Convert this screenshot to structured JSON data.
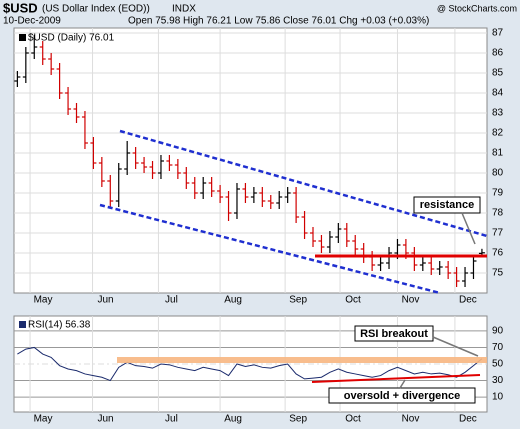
{
  "header": {
    "symbol": "$USD",
    "name": "(US Dollar Index (EOD))",
    "exchange": "INDX",
    "date": "10-Dec-2009",
    "quote": "Open 75.98  High 76.21  Low 75.86  Close 76.01  Chg +0.03 (+0.03%)",
    "credit": "@ StockCharts.com"
  },
  "chart_data": [
    {
      "type": "ohlc",
      "legend": "$USD (Daily) 76.01",
      "grid": true,
      "up_color": "#000000",
      "down_color": "#d00000",
      "open": [
        84.6,
        84.8,
        86.0,
        86.3,
        85.7,
        85.2,
        84.0,
        83.2,
        82.8,
        81.5,
        80.5,
        79.6,
        78.6,
        80.2,
        81.0,
        80.5,
        80.3,
        80.0,
        80.6,
        80.4,
        80.0,
        79.5,
        79.0,
        79.5,
        79.1,
        78.8,
        78.0,
        79.2,
        78.8,
        79.0,
        78.6,
        78.5,
        78.8,
        79.0,
        77.8,
        77.0,
        76.6,
        76.3,
        76.8,
        77.2,
        76.6,
        76.2,
        75.8,
        75.4,
        75.5,
        76.0,
        76.4,
        76.0,
        75.4,
        75.5,
        75.2,
        75.3,
        75.0,
        74.6,
        75.0,
        75.98
      ],
      "high": [
        85.1,
        86.3,
        86.9,
        86.6,
        86.0,
        85.5,
        84.3,
        83.5,
        83.1,
        81.8,
        80.8,
        79.9,
        80.5,
        81.6,
        81.3,
        80.8,
        80.6,
        80.9,
        80.9,
        80.7,
        80.3,
        79.8,
        79.8,
        79.8,
        79.4,
        79.1,
        79.5,
        79.5,
        79.3,
        79.3,
        78.9,
        79.1,
        79.3,
        79.3,
        78.1,
        77.3,
        76.9,
        77.1,
        77.5,
        77.5,
        76.9,
        76.5,
        76.1,
        75.8,
        76.3,
        76.7,
        76.7,
        76.3,
        75.8,
        75.8,
        75.6,
        75.6,
        75.3,
        75.3,
        75.9,
        76.21
      ],
      "low": [
        84.3,
        84.5,
        85.7,
        85.4,
        84.9,
        83.7,
        82.9,
        82.5,
        81.2,
        80.2,
        79.3,
        78.3,
        78.3,
        79.9,
        80.2,
        80.0,
        79.7,
        79.7,
        80.1,
        79.7,
        79.2,
        78.7,
        78.7,
        78.8,
        78.5,
        77.6,
        77.7,
        78.5,
        78.5,
        78.3,
        78.2,
        78.2,
        78.5,
        77.5,
        76.7,
        76.3,
        76.0,
        76.0,
        76.5,
        76.3,
        75.9,
        75.5,
        75.1,
        75.1,
        75.2,
        75.7,
        75.7,
        75.1,
        75.1,
        74.9,
        74.9,
        74.7,
        74.3,
        74.3,
        74.7,
        75.86
      ],
      "close": [
        84.8,
        86.0,
        86.3,
        85.7,
        85.2,
        84.0,
        83.2,
        82.8,
        81.5,
        80.5,
        79.6,
        78.6,
        80.2,
        81.0,
        80.5,
        80.3,
        80.0,
        80.6,
        80.4,
        80.0,
        79.5,
        79.0,
        79.5,
        79.1,
        78.8,
        78.0,
        79.2,
        78.8,
        79.0,
        78.6,
        78.5,
        78.8,
        79.0,
        77.8,
        77.0,
        76.6,
        76.3,
        76.8,
        77.2,
        76.6,
        76.2,
        75.8,
        75.4,
        75.5,
        76.0,
        76.4,
        76.0,
        75.4,
        75.5,
        75.2,
        75.3,
        75.0,
        74.6,
        75.0,
        75.6,
        76.01
      ],
      "ylim": [
        74,
        87.25
      ],
      "yticks": [
        75,
        76,
        77,
        78,
        79,
        80,
        81,
        82,
        83,
        84,
        85,
        86,
        87
      ],
      "xlim": [
        -0.4,
        55.6
      ],
      "xticks": [
        {
          "value": 1.5,
          "label": "May"
        },
        {
          "value": 8.9,
          "label": "Jun"
        },
        {
          "value": 16.7,
          "label": "Jul"
        },
        {
          "value": 24,
          "label": "Aug"
        },
        {
          "value": 31.7,
          "label": "Sep"
        },
        {
          "value": 38.2,
          "label": "Oct"
        },
        {
          "value": 45,
          "label": "Nov"
        },
        {
          "value": 51.8,
          "label": "Dec"
        }
      ],
      "annotations": [
        "resistance"
      ]
    },
    {
      "type": "line",
      "legend": "RSI(14) 56.38",
      "color": "#1a2a6c",
      "values": [
        62,
        68,
        70,
        62,
        58,
        48,
        44,
        42,
        38,
        36,
        34,
        30,
        46,
        52,
        48,
        47,
        45,
        50,
        49,
        46,
        44,
        42,
        46,
        44,
        42,
        36,
        50,
        47,
        49,
        46,
        45,
        48,
        50,
        38,
        32,
        33,
        34,
        40,
        44,
        40,
        38,
        36,
        34,
        36,
        42,
        46,
        42,
        38,
        40,
        38,
        39,
        37,
        34,
        40,
        48,
        56.38
      ],
      "ylim": [
        -8,
        108
      ],
      "yticks": [
        10,
        30,
        50,
        70,
        90
      ],
      "xlim": [
        -0.4,
        55.6
      ],
      "xticks": [
        {
          "value": 1.5,
          "label": "May"
        },
        {
          "value": 8.9,
          "label": "Jun"
        },
        {
          "value": 16.7,
          "label": "Jul"
        },
        {
          "value": 24,
          "label": "Aug"
        },
        {
          "value": 31.7,
          "label": "Sep"
        },
        {
          "value": 38.2,
          "label": "Oct"
        },
        {
          "value": 45,
          "label": "Nov"
        },
        {
          "value": 51.8,
          "label": "Dec"
        }
      ],
      "annotations": [
        "RSI breakout",
        "oversold + divergence"
      ]
    }
  ]
}
